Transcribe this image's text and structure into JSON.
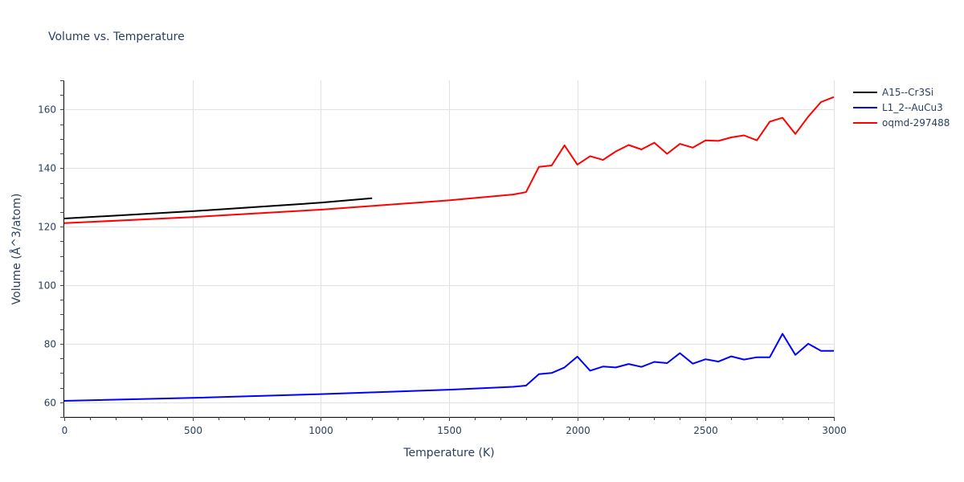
{
  "chart_data": {
    "type": "line",
    "title": "Volume vs. Temperature",
    "xlabel": "Temperature (K)",
    "ylabel": "Volume (Å^3/atom)",
    "xlim": [
      0,
      3000
    ],
    "ylim": [
      55,
      170
    ],
    "x_ticks": [
      0,
      500,
      1000,
      1500,
      2000,
      2500,
      3000
    ],
    "y_ticks": [
      60,
      80,
      100,
      120,
      140,
      160
    ],
    "grid": true,
    "legend_position": "top-right",
    "series": [
      {
        "name": "A15--Cr3Si",
        "color": "#000000",
        "x": [
          0,
          500,
          1000,
          1200
        ],
        "y": [
          122.8,
          125.3,
          128.2,
          129.7
        ]
      },
      {
        "name": "L1_2--AuCu3",
        "color": "#0000ff",
        "x": [
          0,
          500,
          1000,
          1500,
          1750,
          1800,
          1850,
          1900,
          1950,
          2000,
          2050,
          2100,
          2150,
          2200,
          2250,
          2300,
          2350,
          2400,
          2450,
          2500,
          2550,
          2600,
          2650,
          2700,
          2750,
          2800,
          2850,
          2900,
          2950,
          3000
        ],
        "y": [
          60.5,
          61.5,
          62.8,
          64.3,
          65.3,
          65.7,
          69.6,
          70.0,
          71.9,
          75.6,
          70.8,
          72.2,
          71.9,
          73.1,
          72.1,
          73.8,
          73.4,
          76.8,
          73.2,
          74.7,
          73.9,
          75.7,
          74.6,
          75.4,
          75.4,
          83.4,
          76.2,
          80.0,
          77.6,
          77.6
        ]
      },
      {
        "name": "oqmd-297488",
        "color": "#ff0000",
        "x": [
          0,
          500,
          1000,
          1500,
          1750,
          1800,
          1850,
          1900,
          1950,
          2000,
          2050,
          2100,
          2150,
          2200,
          2250,
          2300,
          2350,
          2400,
          2450,
          2500,
          2550,
          2600,
          2650,
          2700,
          2750,
          2800,
          2850,
          2900,
          2950,
          3000
        ],
        "y": [
          121.2,
          123.3,
          125.8,
          129.0,
          131.0,
          131.8,
          140.4,
          140.9,
          147.8,
          141.2,
          144.1,
          142.8,
          145.7,
          147.9,
          146.4,
          148.7,
          144.9,
          148.3,
          147.0,
          149.5,
          149.3,
          150.5,
          151.2,
          149.5,
          155.9,
          157.2,
          151.7,
          157.6,
          162.6,
          164.3
        ]
      }
    ]
  }
}
